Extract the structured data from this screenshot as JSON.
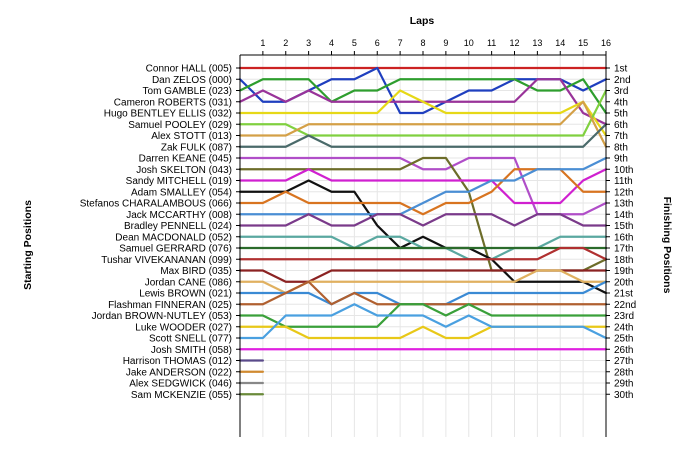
{
  "chart_data": {
    "type": "line",
    "title": "",
    "xlabel": "Laps",
    "ylabel_left": "Starting Positions",
    "ylabel_right": "Finishing Positions",
    "laps": [
      1,
      2,
      3,
      4,
      5,
      6,
      7,
      8,
      9,
      10,
      11,
      12,
      13,
      14,
      15,
      16
    ],
    "xlim": [
      0,
      16
    ],
    "ylim": [
      1,
      30
    ],
    "grid": true,
    "drivers": [
      "Connor HALL (005)",
      "Dan ZELOS (000)",
      "Tom GAMBLE (023)",
      "Cameron ROBERTS (031)",
      "Hugo BENTLEY ELLIS (032)",
      "Samuel POOLEY (029)",
      "Alex STOTT (013)",
      "Zak FULK (087)",
      "Darren KEANE (045)",
      "Josh SKELTON (043)",
      "Sandy MITCHELL (019)",
      "Adam SMALLEY (054)",
      "Stefanos CHARALAMBOUS (066)",
      "Jack MCCARTHY (008)",
      "Bradley PENNELL (024)",
      "Dean MACDONALD (052)",
      "Samuel GERRARD (076)",
      "Tushar VIVEKANANAN (099)",
      "Max BIRD (035)",
      "Jordan CANE (086)",
      "Lewis BROWN (021)",
      "Flashman FINNERAN (025)",
      "Jordan BROWN-NUTLEY (053)",
      "Luke WOODER (027)",
      "Scott SNELL (077)",
      "Josh SMITH (058)",
      "Harrison THOMAS (012)",
      "Jake ANDERSON (022)",
      "Alex SEDGWICK (046)",
      "Sam MCKENZIE (055)"
    ],
    "finishing_positions": [
      "1st",
      "2nd",
      "3rd",
      "4th",
      "5th",
      "6th",
      "7th",
      "8th",
      "9th",
      "10th",
      "11th",
      "12th",
      "13th",
      "14th",
      "15th",
      "16th",
      "17th",
      "18th",
      "19th",
      "20th",
      "21st",
      "22nd",
      "23rd",
      "24th",
      "25th",
      "26th",
      "27th",
      "28th",
      "29th",
      "30th"
    ],
    "series": [
      {
        "color": "#cc2222",
        "positions": [
          1,
          1,
          1,
          1,
          1,
          1,
          1,
          1,
          1,
          1,
          1,
          1,
          1,
          1,
          1,
          1,
          1
        ]
      },
      {
        "color": "#1f3fbf",
        "positions": [
          2,
          4,
          4,
          3,
          2,
          2,
          1,
          5,
          5,
          4,
          3,
          3,
          2,
          2,
          2,
          3,
          2
        ]
      },
      {
        "color": "#2e9e2e",
        "positions": [
          3,
          2,
          2,
          2,
          4,
          3,
          3,
          2,
          2,
          2,
          2,
          2,
          2,
          3,
          3,
          2,
          5
        ]
      },
      {
        "color": "#993399",
        "positions": [
          4,
          3,
          4,
          3,
          4,
          4,
          4,
          4,
          4,
          4,
          4,
          4,
          4,
          2,
          2,
          5,
          6
        ]
      },
      {
        "color": "#e6d817",
        "positions": [
          5,
          5,
          5,
          5,
          5,
          5,
          5,
          3,
          4,
          5,
          5,
          5,
          5,
          5,
          5,
          4,
          7
        ]
      },
      {
        "color": "#80d040",
        "positions": [
          6,
          6,
          6,
          7,
          7,
          7,
          7,
          7,
          7,
          7,
          7,
          7,
          7,
          7,
          7,
          7,
          3
        ]
      },
      {
        "color": "#d4a047",
        "positions": [
          7,
          7,
          7,
          6,
          6,
          6,
          6,
          6,
          6,
          6,
          6,
          6,
          6,
          6,
          6,
          4,
          8
        ]
      },
      {
        "color": "#4a6a6a",
        "positions": [
          8,
          8,
          8,
          7,
          8,
          8,
          8,
          8,
          8,
          8,
          8,
          8,
          8,
          8,
          8,
          8,
          6
        ]
      },
      {
        "color": "#b04ec8",
        "positions": [
          9,
          9,
          9,
          9,
          9,
          9,
          9,
          9,
          10,
          10,
          9,
          9,
          9,
          14,
          14,
          14,
          13
        ]
      },
      {
        "color": "#6d6d2a",
        "positions": [
          10,
          10,
          10,
          10,
          10,
          10,
          10,
          10,
          9,
          9,
          12,
          19,
          19,
          19,
          19,
          19,
          18
        ]
      },
      {
        "color": "#d020d0",
        "positions": [
          11,
          11,
          11,
          10,
          11,
          11,
          11,
          11,
          11,
          11,
          11,
          11,
          13,
          13,
          13,
          11,
          10
        ]
      },
      {
        "color": "#111111",
        "positions": [
          12,
          12,
          12,
          11,
          12,
          12,
          15,
          17,
          16,
          17,
          17,
          18,
          20,
          20,
          20,
          20,
          21
        ]
      },
      {
        "color": "#d87420",
        "positions": [
          13,
          13,
          12,
          13,
          13,
          13,
          13,
          13,
          14,
          13,
          13,
          12,
          10,
          10,
          10,
          12,
          12
        ]
      },
      {
        "color": "#4a8ed4",
        "positions": [
          14,
          14,
          14,
          14,
          14,
          14,
          14,
          14,
          13,
          12,
          12,
          11,
          11,
          10,
          10,
          10,
          9
        ]
      },
      {
        "color": "#7a3a8a",
        "positions": [
          15,
          15,
          15,
          14,
          15,
          15,
          14,
          14,
          15,
          14,
          14,
          14,
          15,
          14,
          14,
          15,
          15
        ]
      },
      {
        "color": "#5aa8a0",
        "positions": [
          16,
          16,
          16,
          16,
          16,
          17,
          16,
          16,
          17,
          17,
          18,
          18,
          17,
          17,
          16,
          16,
          16
        ]
      },
      {
        "color": "#2b6b2b",
        "positions": [
          17,
          17,
          17,
          17,
          17,
          17,
          17,
          17,
          17,
          17,
          17,
          17,
          17,
          17,
          17,
          17,
          17
        ]
      },
      {
        "color": "#b03030",
        "positions": [
          18,
          18,
          18,
          18,
          18,
          18,
          18,
          18,
          18,
          18,
          18,
          18,
          18,
          18,
          17,
          17,
          18
        ]
      },
      {
        "color": "#8b2222",
        "positions": [
          19,
          19,
          20,
          20,
          19,
          19,
          19,
          19,
          19,
          19,
          19,
          19,
          19,
          19,
          19,
          19,
          19
        ]
      },
      {
        "color": "#e0b060",
        "positions": [
          20,
          20,
          21,
          20,
          20,
          20,
          20,
          20,
          20,
          20,
          20,
          20,
          20,
          19,
          19,
          20,
          20
        ]
      },
      {
        "color": "#3a8ad4",
        "positions": [
          21,
          21,
          21,
          21,
          22,
          21,
          21,
          22,
          22,
          22,
          21,
          21,
          21,
          21,
          21,
          21,
          20
        ]
      },
      {
        "color": "#b06030",
        "positions": [
          22,
          22,
          21,
          20,
          22,
          21,
          22,
          22,
          22,
          22,
          22,
          22,
          22,
          22,
          22,
          22,
          22
        ]
      },
      {
        "color": "#3aa03a",
        "positions": [
          23,
          23,
          24,
          24,
          24,
          24,
          24,
          22,
          22,
          23,
          22,
          23,
          23,
          23,
          23,
          23,
          23
        ]
      },
      {
        "color": "#e8c818",
        "positions": [
          24,
          24,
          24,
          25,
          25,
          25,
          25,
          25,
          24,
          25,
          25,
          24,
          24,
          24,
          24,
          24,
          24
        ]
      },
      {
        "color": "#4aa0e0",
        "positions": [
          25,
          25,
          23,
          23,
          23,
          22,
          23,
          23,
          23,
          24,
          23,
          24,
          24,
          24,
          24,
          24,
          25
        ]
      },
      {
        "color": "#e020e0",
        "positions": [
          26,
          26,
          26,
          26,
          26,
          26,
          26,
          26,
          26,
          26,
          26,
          26,
          26,
          26,
          26,
          26,
          26
        ]
      },
      {
        "color": "#5a4a8a",
        "positions": [
          27,
          27
        ]
      },
      {
        "color": "#d08a30",
        "positions": [
          28,
          28
        ]
      },
      {
        "color": "#888888",
        "positions": [
          29,
          29
        ]
      },
      {
        "color": "#6a8a3a",
        "positions": [
          30,
          30
        ]
      }
    ]
  }
}
